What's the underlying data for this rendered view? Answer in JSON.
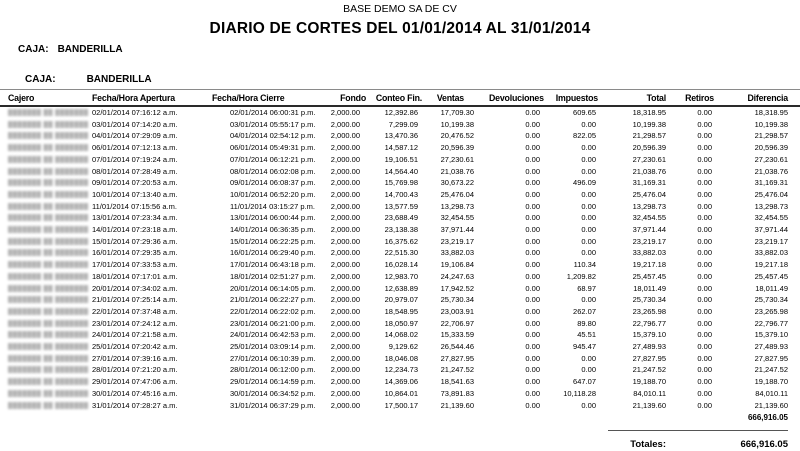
{
  "report": {
    "company": "BASE DEMO SA DE CV",
    "title": "DIARIO DE CORTES DEL 01/01/2014 AL 31/01/2014",
    "caja_label": "CAJA:",
    "caja_value": "BANDERILLA",
    "redacted_cashier": "▓▓▓▓▓▓▓ ▓▓ ▓▓▓▓▓▓▓"
  },
  "table": {
    "headers": [
      "Cajero",
      "Fecha/Hora Apertura",
      "Fecha/Hora Cierre",
      "Fondo",
      "Conteo Fin.",
      "Ventas",
      "Devoluciones",
      "Impuestos",
      "Total",
      "Retiros",
      "Diferencia"
    ],
    "rows": [
      [
        "02/01/2014 07:16:12 a.m.",
        "02/01/2014 06:00:31 p.m.",
        "2,000.00",
        "12,392.86",
        "17,709.30",
        "0.00",
        "609.65",
        "18,318.95",
        "0.00",
        "18,318.95"
      ],
      [
        "03/01/2014 07:14:20 a.m.",
        "03/01/2014 05:55:17 p.m.",
        "2,000.00",
        "7,299.09",
        "10,199.38",
        "0.00",
        "0.00",
        "10,199.38",
        "0.00",
        "10,199.38"
      ],
      [
        "04/01/2014 07:29:09 a.m.",
        "04/01/2014 02:54:12 p.m.",
        "2,000.00",
        "13,470.36",
        "20,476.52",
        "0.00",
        "822.05",
        "21,298.57",
        "0.00",
        "21,298.57"
      ],
      [
        "06/01/2014 07:12:13 a.m.",
        "06/01/2014 05:49:31 p.m.",
        "2,000.00",
        "14,587.12",
        "20,596.39",
        "0.00",
        "0.00",
        "20,596.39",
        "0.00",
        "20,596.39"
      ],
      [
        "07/01/2014 07:19:24 a.m.",
        "07/01/2014 06:12:21 p.m.",
        "2,000.00",
        "19,106.51",
        "27,230.61",
        "0.00",
        "0.00",
        "27,230.61",
        "0.00",
        "27,230.61"
      ],
      [
        "08/01/2014 07:28:49 a.m.",
        "08/01/2014 06:02:08 p.m.",
        "2,000.00",
        "14,564.40",
        "21,038.76",
        "0.00",
        "0.00",
        "21,038.76",
        "0.00",
        "21,038.76"
      ],
      [
        "09/01/2014 07:20:53 a.m.",
        "09/01/2014 06:08:37 p.m.",
        "2,000.00",
        "15,769.98",
        "30,673.22",
        "0.00",
        "496.09",
        "31,169.31",
        "0.00",
        "31,169.31"
      ],
      [
        "10/01/2014 07:13:40 a.m.",
        "10/01/2014 06:52:20 p.m.",
        "2,000.00",
        "14,700.43",
        "25,476.04",
        "0.00",
        "0.00",
        "25,476.04",
        "0.00",
        "25,476.04"
      ],
      [
        "11/01/2014 07:15:56 a.m.",
        "11/01/2014 03:15:27 p.m.",
        "2,000.00",
        "13,577.59",
        "13,298.73",
        "0.00",
        "0.00",
        "13,298.73",
        "0.00",
        "13,298.73"
      ],
      [
        "13/01/2014 07:23:34 a.m.",
        "13/01/2014 06:00:44 p.m.",
        "2,000.00",
        "23,688.49",
        "32,454.55",
        "0.00",
        "0.00",
        "32,454.55",
        "0.00",
        "32,454.55"
      ],
      [
        "14/01/2014 07:23:18 a.m.",
        "14/01/2014 06:36:35 p.m.",
        "2,000.00",
        "23,138.38",
        "37,971.44",
        "0.00",
        "0.00",
        "37,971.44",
        "0.00",
        "37,971.44"
      ],
      [
        "15/01/2014 07:29:36 a.m.",
        "15/01/2014 06:22:25 p.m.",
        "2,000.00",
        "16,375.62",
        "23,219.17",
        "0.00",
        "0.00",
        "23,219.17",
        "0.00",
        "23,219.17"
      ],
      [
        "16/01/2014 07:29:35 a.m.",
        "16/01/2014 06:29:40 p.m.",
        "2,000.00",
        "22,515.30",
        "33,882.03",
        "0.00",
        "0.00",
        "33,882.03",
        "0.00",
        "33,882.03"
      ],
      [
        "17/01/2014 07:33:53 a.m.",
        "17/01/2014 06:43:18 p.m.",
        "2,000.00",
        "16,028.14",
        "19,106.84",
        "0.00",
        "110.34",
        "19,217.18",
        "0.00",
        "19,217.18"
      ],
      [
        "18/01/2014 07:17:01 a.m.",
        "18/01/2014 02:51:27 p.m.",
        "2,000.00",
        "12,983.70",
        "24,247.63",
        "0.00",
        "1,209.82",
        "25,457.45",
        "0.00",
        "25,457.45"
      ],
      [
        "20/01/2014 07:34:02 a.m.",
        "20/01/2014 06:14:05 p.m.",
        "2,000.00",
        "12,638.89",
        "17,942.52",
        "0.00",
        "68.97",
        "18,011.49",
        "0.00",
        "18,011.49"
      ],
      [
        "21/01/2014 07:25:14 a.m.",
        "21/01/2014 06:22:27 p.m.",
        "2,000.00",
        "20,979.07",
        "25,730.34",
        "0.00",
        "0.00",
        "25,730.34",
        "0.00",
        "25,730.34"
      ],
      [
        "22/01/2014 07:37:48 a.m.",
        "22/01/2014 06:22:02 p.m.",
        "2,000.00",
        "18,548.95",
        "23,003.91",
        "0.00",
        "262.07",
        "23,265.98",
        "0.00",
        "23,265.98"
      ],
      [
        "23/01/2014 07:24:12 a.m.",
        "23/01/2014 06:21:00 p.m.",
        "2,000.00",
        "18,050.97",
        "22,706.97",
        "0.00",
        "89.80",
        "22,796.77",
        "0.00",
        "22,796.77"
      ],
      [
        "24/01/2014 07:21:58 a.m.",
        "24/01/2014 06:42:53 p.m.",
        "2,000.00",
        "14,068.02",
        "15,333.59",
        "0.00",
        "45.51",
        "15,379.10",
        "0.00",
        "15,379.10"
      ],
      [
        "25/01/2014 07:20:42 a.m.",
        "25/01/2014 03:09:14 p.m.",
        "2,000.00",
        "9,129.62",
        "26,544.46",
        "0.00",
        "945.47",
        "27,489.93",
        "0.00",
        "27,489.93"
      ],
      [
        "27/01/2014 07:39:16 a.m.",
        "27/01/2014 06:10:39 p.m.",
        "2,000.00",
        "18,046.08",
        "27,827.95",
        "0.00",
        "0.00",
        "27,827.95",
        "0.00",
        "27,827.95"
      ],
      [
        "28/01/2014 07:21:20 a.m.",
        "28/01/2014 06:12:00 p.m.",
        "2,000.00",
        "12,234.73",
        "21,247.52",
        "0.00",
        "0.00",
        "21,247.52",
        "0.00",
        "21,247.52"
      ],
      [
        "29/01/2014 07:47:06 a.m.",
        "29/01/2014 06:14:59 p.m.",
        "2,000.00",
        "14,369.06",
        "18,541.63",
        "0.00",
        "647.07",
        "19,188.70",
        "0.00",
        "19,188.70"
      ],
      [
        "30/01/2014 07:45:16 a.m.",
        "30/01/2014 06:34:52 p.m.",
        "2,000.00",
        "10,864.01",
        "73,891.83",
        "0.00",
        "10,118.28",
        "84,010.11",
        "0.00",
        "84,010.11"
      ],
      [
        "31/01/2014 07:28:27 a.m.",
        "31/01/2014 06:37:29 p.m.",
        "2,000.00",
        "17,500.17",
        "21,139.60",
        "0.00",
        "0.00",
        "21,139.60",
        "0.00",
        "21,139.60"
      ]
    ],
    "subtotal_diferencia": "666,916.05",
    "totals_label": "Totales:",
    "totals_value": "666,916.05"
  }
}
